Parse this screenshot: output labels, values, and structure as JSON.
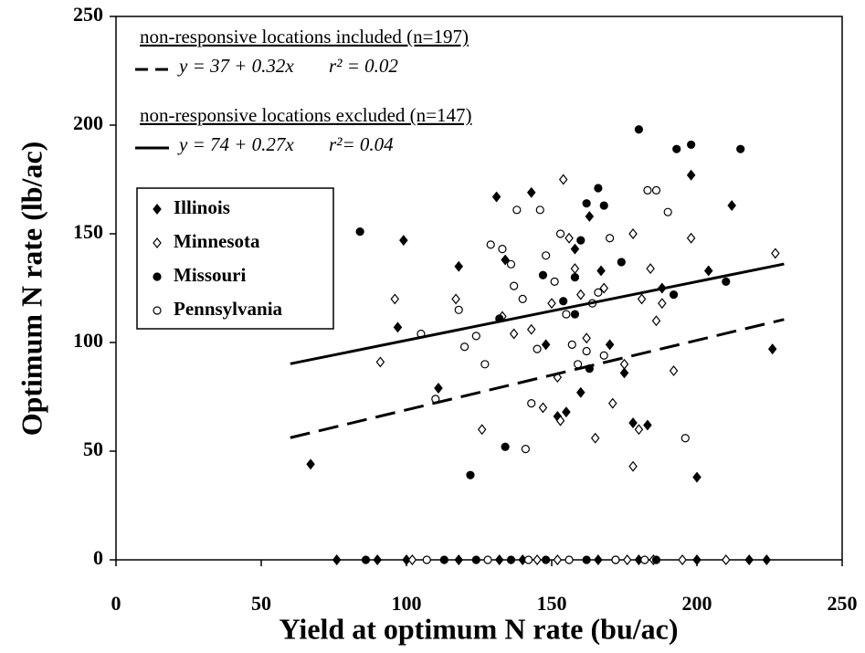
{
  "chart_data": {
    "type": "scatter",
    "xlabel": "Yield at optimum N rate (bu/ac)",
    "ylabel": "Optimum N rate (lb/ac)",
    "xlim": [
      0,
      250
    ],
    "xticks": [
      0,
      50,
      100,
      150,
      200,
      250
    ],
    "ylim": [
      0,
      250
    ],
    "yticks": [
      0,
      50,
      100,
      150,
      200,
      250
    ],
    "grid": false,
    "legend_position": "upper left",
    "series": [
      {
        "name": "Illinois",
        "marker": "diamond",
        "filled": true,
        "color": "#000000",
        "x": [
          67,
          99,
          97,
          111,
          131,
          134,
          143,
          148,
          152,
          155,
          160,
          163,
          167,
          170,
          175,
          178,
          183,
          188,
          198,
          200,
          204,
          212,
          226,
          76,
          90,
          100,
          118,
          132,
          140,
          166,
          180,
          200,
          218,
          224,
          158,
          118
        ],
        "y": [
          44,
          147,
          107,
          79,
          167,
          138,
          169,
          99,
          66,
          68,
          77,
          158,
          133,
          99,
          86,
          63,
          62,
          125,
          177,
          38,
          133,
          163,
          97,
          0,
          0,
          0,
          0,
          0,
          0,
          0,
          0,
          0,
          0,
          0,
          143,
          135
        ]
      },
      {
        "name": "Minnesota",
        "marker": "diamond",
        "filled": false,
        "color": "#000000",
        "x": [
          91,
          96,
          117,
          126,
          133,
          137,
          143,
          147,
          150,
          152,
          153,
          154,
          156,
          158,
          160,
          162,
          165,
          168,
          171,
          175,
          178,
          180,
          184,
          186,
          188,
          192,
          198,
          227,
          178,
          181,
          102,
          145,
          152,
          176,
          185,
          195,
          210
        ],
        "y": [
          91,
          120,
          120,
          60,
          112,
          104,
          106,
          70,
          118,
          84,
          64,
          175,
          148,
          134,
          122,
          102,
          56,
          125,
          72,
          90,
          150,
          60,
          134,
          110,
          118,
          87,
          148,
          141,
          43,
          120,
          0,
          0,
          0,
          0,
          0,
          0,
          0
        ]
      },
      {
        "name": "Missouri",
        "marker": "circle",
        "filled": true,
        "color": "#000000",
        "x": [
          84,
          122,
          134,
          132,
          147,
          154,
          158,
          160,
          162,
          166,
          168,
          174,
          180,
          192,
          193,
          198,
          210,
          215,
          163,
          158,
          86,
          113,
          124,
          136,
          148,
          162,
          172,
          186
        ],
        "y": [
          151,
          39,
          52,
          111,
          131,
          119,
          113,
          147,
          164,
          171,
          163,
          137,
          198,
          122,
          189,
          191,
          128,
          189,
          88,
          130,
          0,
          0,
          0,
          0,
          0,
          0,
          0,
          0
        ]
      },
      {
        "name": "Pennsylvania",
        "marker": "circle",
        "filled": false,
        "color": "#000000",
        "x": [
          105,
          110,
          118,
          120,
          124,
          127,
          129,
          133,
          136,
          137,
          138,
          140,
          141,
          143,
          145,
          146,
          148,
          151,
          153,
          155,
          157,
          159,
          162,
          164,
          166,
          168,
          170,
          183,
          186,
          190,
          196,
          107,
          128,
          142,
          156,
          172,
          182
        ],
        "y": [
          104,
          74,
          115,
          98,
          103,
          90,
          145,
          143,
          136,
          126,
          161,
          120,
          51,
          72,
          97,
          161,
          140,
          128,
          150,
          113,
          99,
          90,
          96,
          118,
          123,
          94,
          148,
          170,
          170,
          160,
          56,
          0,
          0,
          0,
          0,
          0,
          0
        ]
      }
    ],
    "fits": [
      {
        "label": "non-responsive locations included (n=197)",
        "equation": "y = 37 + 0.32x",
        "r2": "r² = 0.02",
        "dashed": true,
        "color": "#000000",
        "x": [
          60,
          230
        ],
        "y": [
          56.2,
          110.6
        ]
      },
      {
        "label": "non-responsive locations excluded (n=147)",
        "equation": "y = 74 + 0.27x",
        "r2": "r²= 0.04",
        "dashed": false,
        "color": "#000000",
        "x": [
          60,
          230
        ],
        "y": [
          90.2,
          136.1
        ]
      }
    ]
  }
}
